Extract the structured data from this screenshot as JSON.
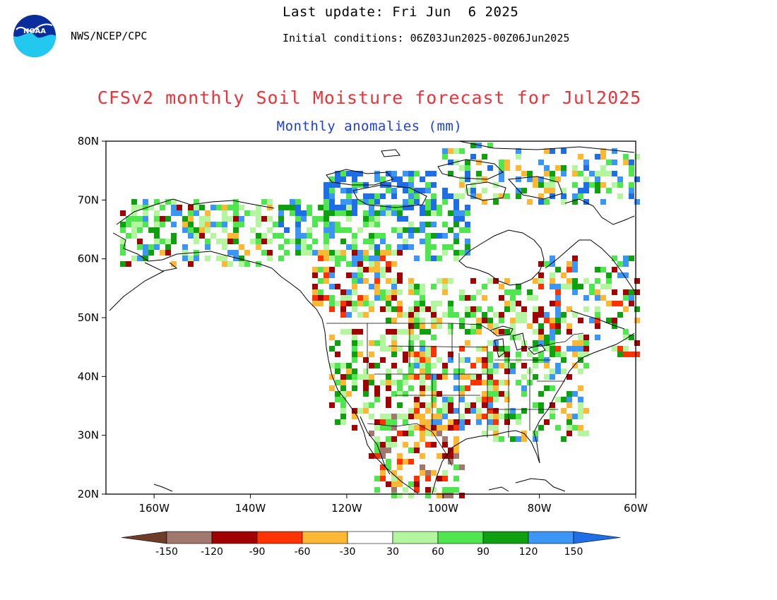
{
  "header": {
    "agency": "NWS/NCEP/CPC",
    "last_update": "Last update: Fri Jun  6 2025",
    "initial_conditions": "Initial conditions: 06Z03Jun2025-00Z06Jun2025",
    "logo_text": "NOAA"
  },
  "map": {
    "title": "CFSv2 monthly Soil Moisture forecast for Jul2025",
    "subtitle": "Monthly anomalies (mm)",
    "lon_range": [
      -170,
      -60
    ],
    "lat_range": [
      20,
      80
    ],
    "lat_ticks": [
      {
        "value": 80,
        "label": "80N"
      },
      {
        "value": 70,
        "label": "70N"
      },
      {
        "value": 60,
        "label": "60N"
      },
      {
        "value": 50,
        "label": "50N"
      },
      {
        "value": 40,
        "label": "40N"
      },
      {
        "value": 30,
        "label": "30N"
      },
      {
        "value": 20,
        "label": "20N"
      }
    ],
    "lon_ticks": [
      {
        "value": -160,
        "label": "160W"
      },
      {
        "value": -140,
        "label": "140W"
      },
      {
        "value": -120,
        "label": "120W"
      },
      {
        "value": -100,
        "label": "100W"
      },
      {
        "value": -80,
        "label": "80W"
      },
      {
        "value": -60,
        "label": "60W"
      }
    ]
  },
  "colorbar": {
    "colors": [
      "#6e3d29",
      "#a0786e",
      "#a00000",
      "#ff3300",
      "#ffb833",
      "#ffffff",
      "#b4f5a0",
      "#50e650",
      "#0fa00f",
      "#3c96f5",
      "#1e6ee6"
    ],
    "labels": [
      "-150",
      "-120",
      "-90",
      "-60",
      "-30",
      "30",
      "60",
      "90",
      "120",
      "150"
    ]
  },
  "colors": {
    "title": "#e8333a",
    "subtitle": "#1f3fd9"
  }
}
